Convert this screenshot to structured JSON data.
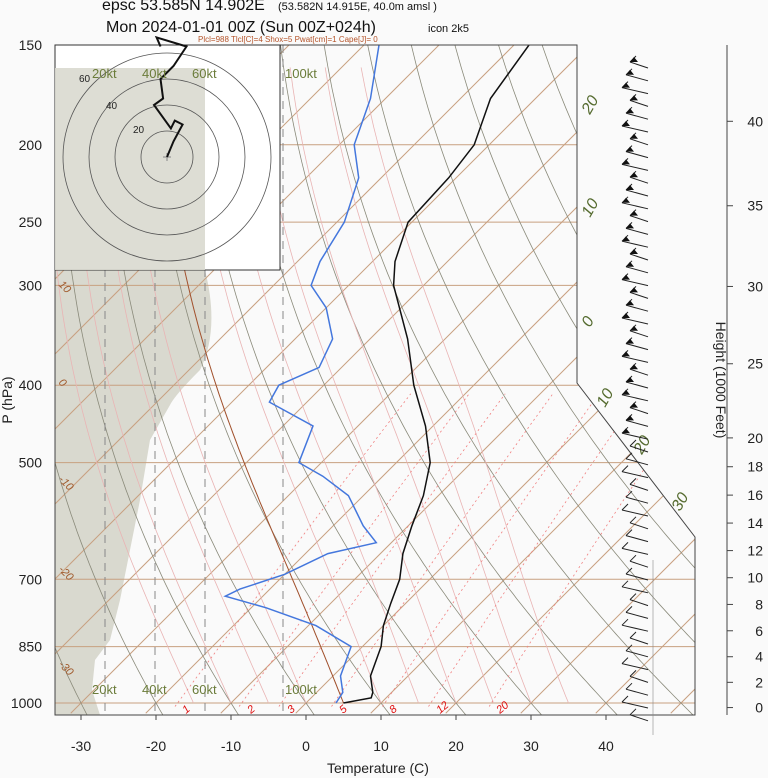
{
  "header": {
    "title_line1": "epsc 53.585N 14.902E",
    "title_line1_small": "(53.582N 14.915E,  40.0m amsl )",
    "title_line2": "Mon 2024-01-01 00Z (Sun 00Z+024h)",
    "model": "icon 2k5",
    "indices": "Plcl=988 Tlcl[C]=4 Shox=5 Pwat[cm]=1 Cape[J]= 0"
  },
  "chart_data": {
    "type": "line",
    "subtype": "skew-T log-P diagram",
    "xlabel": "Temperature (C)",
    "ylabel": "P (hPa)",
    "y2label": "Height (1000 Feet)",
    "xlim": [
      -34,
      42
    ],
    "ylim": [
      1030,
      150
    ],
    "x_ticks": [
      -30,
      -20,
      -10,
      0,
      10,
      20,
      30,
      40
    ],
    "p_ticks": [
      150,
      200,
      250,
      300,
      400,
      500,
      700,
      850,
      1000
    ],
    "height_ticks": [
      0,
      2,
      4,
      6,
      8,
      10,
      12,
      14,
      16,
      18,
      20,
      25,
      30,
      35,
      40
    ],
    "mixing_ratio_labels": [
      "1",
      "2",
      "3",
      "5",
      "8",
      "12",
      "20"
    ],
    "dry_adiabat_labels": [
      "10",
      "0",
      "-10",
      "-20",
      "-30"
    ],
    "moist_adiabat_labels": [
      "20",
      "10",
      "0",
      "10",
      "20",
      "30"
    ],
    "wind_speed_labels": [
      "20kt",
      "40kt",
      "60kt",
      "100kt"
    ],
    "hodograph_ring_labels": [
      "20",
      "40",
      "60"
    ],
    "series": [
      {
        "name": "temperature",
        "color": "#111111",
        "points": [
          [
            1000,
            5
          ],
          [
            985,
            8
          ],
          [
            970,
            7.5
          ],
          [
            925,
            5
          ],
          [
            850,
            2.5
          ],
          [
            800,
            0
          ],
          [
            750,
            -2
          ],
          [
            700,
            -4
          ],
          [
            650,
            -7
          ],
          [
            600,
            -9.5
          ],
          [
            550,
            -12
          ],
          [
            500,
            -15.5
          ],
          [
            450,
            -21
          ],
          [
            400,
            -28
          ],
          [
            350,
            -35
          ],
          [
            300,
            -44
          ],
          [
            280,
            -47
          ],
          [
            250,
            -50.5
          ],
          [
            220,
            -51
          ],
          [
            200,
            -52
          ],
          [
            175,
            -56
          ],
          [
            150,
            -58
          ]
        ]
      },
      {
        "name": "dewpoint",
        "color": "#4477dd",
        "points": [
          [
            1000,
            4
          ],
          [
            970,
            3.5
          ],
          [
            925,
            1
          ],
          [
            850,
            -1.5
          ],
          [
            800,
            -9
          ],
          [
            760,
            -18
          ],
          [
            735,
            -25
          ],
          [
            720,
            -24
          ],
          [
            690,
            -20
          ],
          [
            650,
            -17
          ],
          [
            630,
            -12
          ],
          [
            600,
            -16
          ],
          [
            550,
            -22
          ],
          [
            520,
            -28
          ],
          [
            500,
            -33
          ],
          [
            450,
            -36
          ],
          [
            420,
            -45
          ],
          [
            400,
            -46
          ],
          [
            380,
            -43
          ],
          [
            350,
            -45
          ],
          [
            320,
            -50
          ],
          [
            300,
            -55
          ],
          [
            280,
            -57
          ],
          [
            250,
            -59
          ],
          [
            220,
            -63
          ],
          [
            200,
            -68
          ],
          [
            175,
            -72
          ],
          [
            150,
            -78
          ]
        ]
      }
    ],
    "hodograph_trace": [
      [
        0,
        0
      ],
      [
        5,
        12
      ],
      [
        12,
        25
      ],
      [
        6,
        28
      ],
      [
        3,
        22
      ],
      [
        -10,
        40
      ],
      [
        -3,
        45
      ],
      [
        -5,
        60
      ],
      [
        5,
        70
      ],
      [
        15,
        85
      ],
      [
        -8,
        92
      ],
      [
        -5,
        85
      ]
    ]
  },
  "colors": {
    "isotherm": "#c8a080",
    "mixing_ratio": "#f08080",
    "moist_adiabat": "#e9b4b4",
    "dry_adiabat": "#8a8a7a",
    "humidity_fill": "#d9d9cf",
    "parcel": "#a0522d",
    "dewpoint": "#4477dd",
    "temperature": "#111111"
  }
}
